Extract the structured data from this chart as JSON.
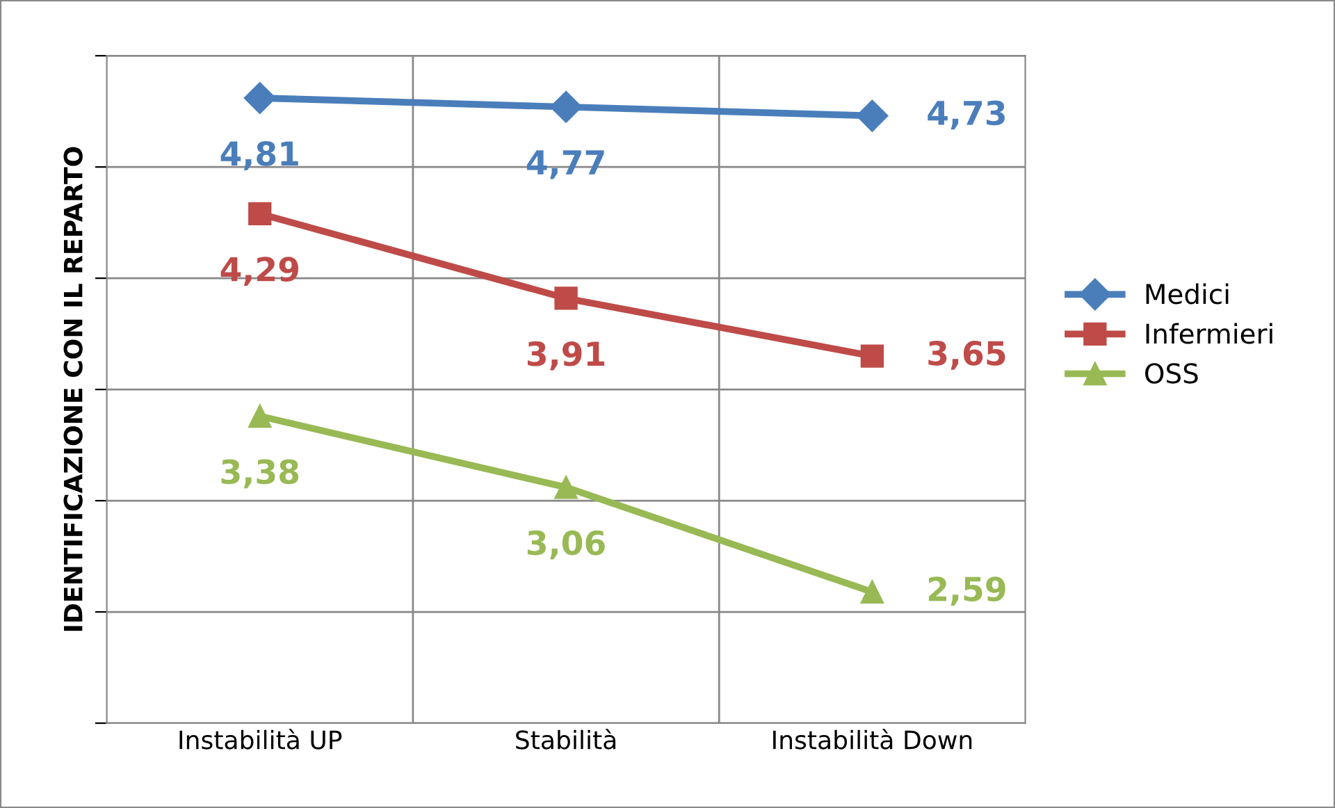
{
  "chart_data": {
    "type": "line",
    "ylabel": "IDENTIFICAZIONE CON IL REPARTO",
    "categories": [
      "Instabilità UP",
      "Stabilità",
      "Instabilità Down"
    ],
    "series": [
      {
        "name": "Medici",
        "color": "#4a7ebb",
        "marker": "diamond",
        "values": [
          4.81,
          4.77,
          4.73
        ],
        "value_labels": [
          "4,81",
          "4,77",
          "4,73"
        ]
      },
      {
        "name": "Infermieri",
        "color": "#be4b48",
        "marker": "square",
        "values": [
          4.29,
          3.91,
          3.65
        ],
        "value_labels": [
          "4,29",
          "3,91",
          "3,65"
        ]
      },
      {
        "name": "OSS",
        "color": "#98b954",
        "marker": "triangle",
        "values": [
          3.38,
          3.06,
          2.59
        ],
        "value_labels": [
          "3,38",
          "3,06",
          "2,59"
        ]
      }
    ],
    "ylim": [
      2,
      5
    ],
    "yticks": [
      {
        "value": 2,
        "label": null
      },
      {
        "value": 2.5,
        "label": null
      },
      {
        "value": 3,
        "label": null
      },
      {
        "value": 3.5,
        "label": null
      },
      {
        "value": 4,
        "label": null
      },
      {
        "value": 4.5,
        "label": null
      },
      {
        "value": 5,
        "label": null
      }
    ],
    "tick_labels": "x",
    "grid": true,
    "legend": "right",
    "line_style": "solid"
  }
}
